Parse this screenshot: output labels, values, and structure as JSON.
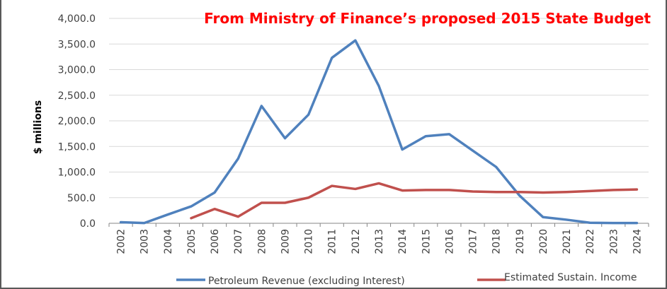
{
  "chart_data": {
    "type": "line",
    "title": "From Ministry of Finance’s proposed 2015 State Budget",
    "xlabel": "",
    "ylabel": "$ millions",
    "ylim": [
      0,
      4000
    ],
    "y_ticks": [
      "0.0",
      "500.0",
      "1,000.0",
      "1,500.0",
      "2,000.0",
      "2,500.0",
      "3,000.0",
      "3,500.0",
      "4,000.0"
    ],
    "grid": "horizontal",
    "legend_position": "bottom",
    "categories": [
      "2002",
      "2003",
      "2004",
      "2005",
      "2006",
      "2007",
      "2008",
      "2009",
      "2010",
      "2011",
      "2012",
      "2013",
      "2014",
      "2015",
      "2016",
      "2017",
      "2018",
      "2019",
      "2020",
      "2021",
      "2022",
      "2023",
      "2024"
    ],
    "series": [
      {
        "name": "Petroleum Revenue (excluding Interest)",
        "color": "#4f81bd",
        "values": [
          20,
          5,
          170,
          330,
          600,
          1260,
          2290,
          1660,
          2120,
          3230,
          3570,
          2680,
          1440,
          1700,
          1740,
          1420,
          1100,
          540,
          120,
          70,
          10,
          5,
          5
        ]
      },
      {
        "name": "Estimated Sustain. Income",
        "color": "#c0504d",
        "values": [
          null,
          null,
          null,
          100,
          280,
          130,
          400,
          400,
          500,
          730,
          670,
          780,
          640,
          650,
          650,
          620,
          610,
          610,
          600,
          610,
          630,
          650,
          660
        ]
      }
    ]
  }
}
